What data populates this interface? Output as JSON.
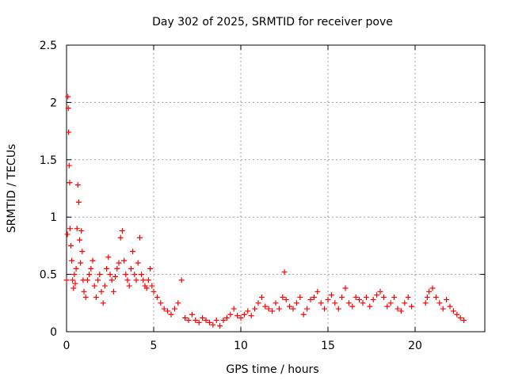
{
  "chart_data": {
    "type": "scatter",
    "title": "Day 302 of 2025, SRMTID for receiver pove",
    "xlabel": "GPS time / hours",
    "ylabel": "SRMTID / TECUs",
    "xlim": [
      0,
      24
    ],
    "ylim": [
      0,
      2.5
    ],
    "xticks": [
      0,
      5,
      10,
      15,
      20
    ],
    "xtick_labels": [
      "0",
      "5",
      "10",
      "15",
      "20"
    ],
    "yticks": [
      0,
      0.5,
      1,
      1.5,
      2,
      2.5
    ],
    "ytick_labels": [
      "0",
      "0.5",
      "1",
      "1.5",
      "2",
      "2.5"
    ],
    "grid": true,
    "marker": "+",
    "color": "#ff0000",
    "series": [
      {
        "name": "SRMTID",
        "x": [
          0.0,
          0.05,
          0.08,
          0.1,
          0.12,
          0.15,
          0.18,
          0.2,
          0.25,
          0.3,
          0.35,
          0.4,
          0.45,
          0.5,
          0.55,
          0.6,
          0.65,
          0.7,
          0.75,
          0.8,
          0.85,
          0.9,
          0.95,
          1.0,
          1.1,
          1.2,
          1.3,
          1.4,
          1.5,
          1.6,
          1.7,
          1.8,
          1.9,
          2.0,
          2.1,
          2.2,
          2.3,
          2.4,
          2.5,
          2.6,
          2.7,
          2.8,
          2.9,
          3.0,
          3.1,
          3.2,
          3.3,
          3.4,
          3.5,
          3.6,
          3.7,
          3.8,
          3.9,
          4.0,
          4.1,
          4.2,
          4.3,
          4.4,
          4.5,
          4.6,
          4.7,
          4.8,
          4.9,
          5.0,
          5.2,
          5.4,
          5.6,
          5.8,
          6.0,
          6.2,
          6.4,
          6.6,
          6.8,
          7.0,
          7.2,
          7.4,
          7.6,
          7.8,
          8.0,
          8.2,
          8.4,
          8.6,
          8.8,
          9.0,
          9.2,
          9.4,
          9.6,
          9.8,
          10.0,
          10.2,
          10.4,
          10.6,
          10.8,
          11.0,
          11.2,
          11.4,
          11.6,
          11.8,
          12.0,
          12.2,
          12.4,
          12.5,
          12.6,
          12.8,
          13.0,
          13.2,
          13.4,
          13.6,
          13.8,
          14.0,
          14.2,
          14.4,
          14.6,
          14.8,
          15.0,
          15.2,
          15.4,
          15.6,
          15.8,
          16.0,
          16.2,
          16.4,
          16.6,
          16.8,
          17.0,
          17.2,
          17.4,
          17.6,
          17.8,
          18.0,
          18.2,
          18.4,
          18.6,
          18.8,
          19.0,
          19.2,
          19.4,
          19.6,
          19.8,
          20.6,
          20.7,
          20.8,
          21.0,
          21.2,
          21.4,
          21.6,
          21.8,
          22.0,
          22.2,
          22.4,
          22.6,
          22.8
        ],
        "y": [
          0.45,
          0.85,
          2.05,
          1.95,
          1.74,
          1.45,
          1.3,
          0.9,
          0.75,
          0.62,
          0.45,
          0.38,
          0.5,
          0.42,
          0.55,
          0.9,
          1.28,
          1.13,
          0.8,
          0.6,
          0.88,
          0.7,
          0.45,
          0.35,
          0.3,
          0.45,
          0.5,
          0.55,
          0.62,
          0.4,
          0.3,
          0.45,
          0.5,
          0.35,
          0.25,
          0.4,
          0.55,
          0.65,
          0.5,
          0.45,
          0.35,
          0.48,
          0.55,
          0.6,
          0.82,
          0.88,
          0.62,
          0.5,
          0.45,
          0.4,
          0.55,
          0.7,
          0.5,
          0.45,
          0.6,
          0.82,
          0.5,
          0.45,
          0.4,
          0.38,
          0.45,
          0.55,
          0.4,
          0.35,
          0.3,
          0.25,
          0.2,
          0.18,
          0.15,
          0.2,
          0.25,
          0.45,
          0.12,
          0.1,
          0.15,
          0.1,
          0.08,
          0.12,
          0.1,
          0.08,
          0.06,
          0.1,
          0.05,
          0.1,
          0.12,
          0.15,
          0.2,
          0.14,
          0.12,
          0.15,
          0.18,
          0.14,
          0.2,
          0.25,
          0.3,
          0.22,
          0.2,
          0.18,
          0.25,
          0.2,
          0.3,
          0.52,
          0.28,
          0.22,
          0.2,
          0.25,
          0.3,
          0.15,
          0.2,
          0.28,
          0.3,
          0.35,
          0.25,
          0.2,
          0.28,
          0.32,
          0.25,
          0.2,
          0.3,
          0.38,
          0.25,
          0.22,
          0.3,
          0.28,
          0.25,
          0.3,
          0.22,
          0.28,
          0.32,
          0.35,
          0.3,
          0.22,
          0.25,
          0.3,
          0.2,
          0.18,
          0.25,
          0.3,
          0.22,
          0.25,
          0.3,
          0.35,
          0.38,
          0.3,
          0.25,
          0.2,
          0.28,
          0.22,
          0.18,
          0.15,
          0.12,
          0.1
        ]
      }
    ]
  }
}
